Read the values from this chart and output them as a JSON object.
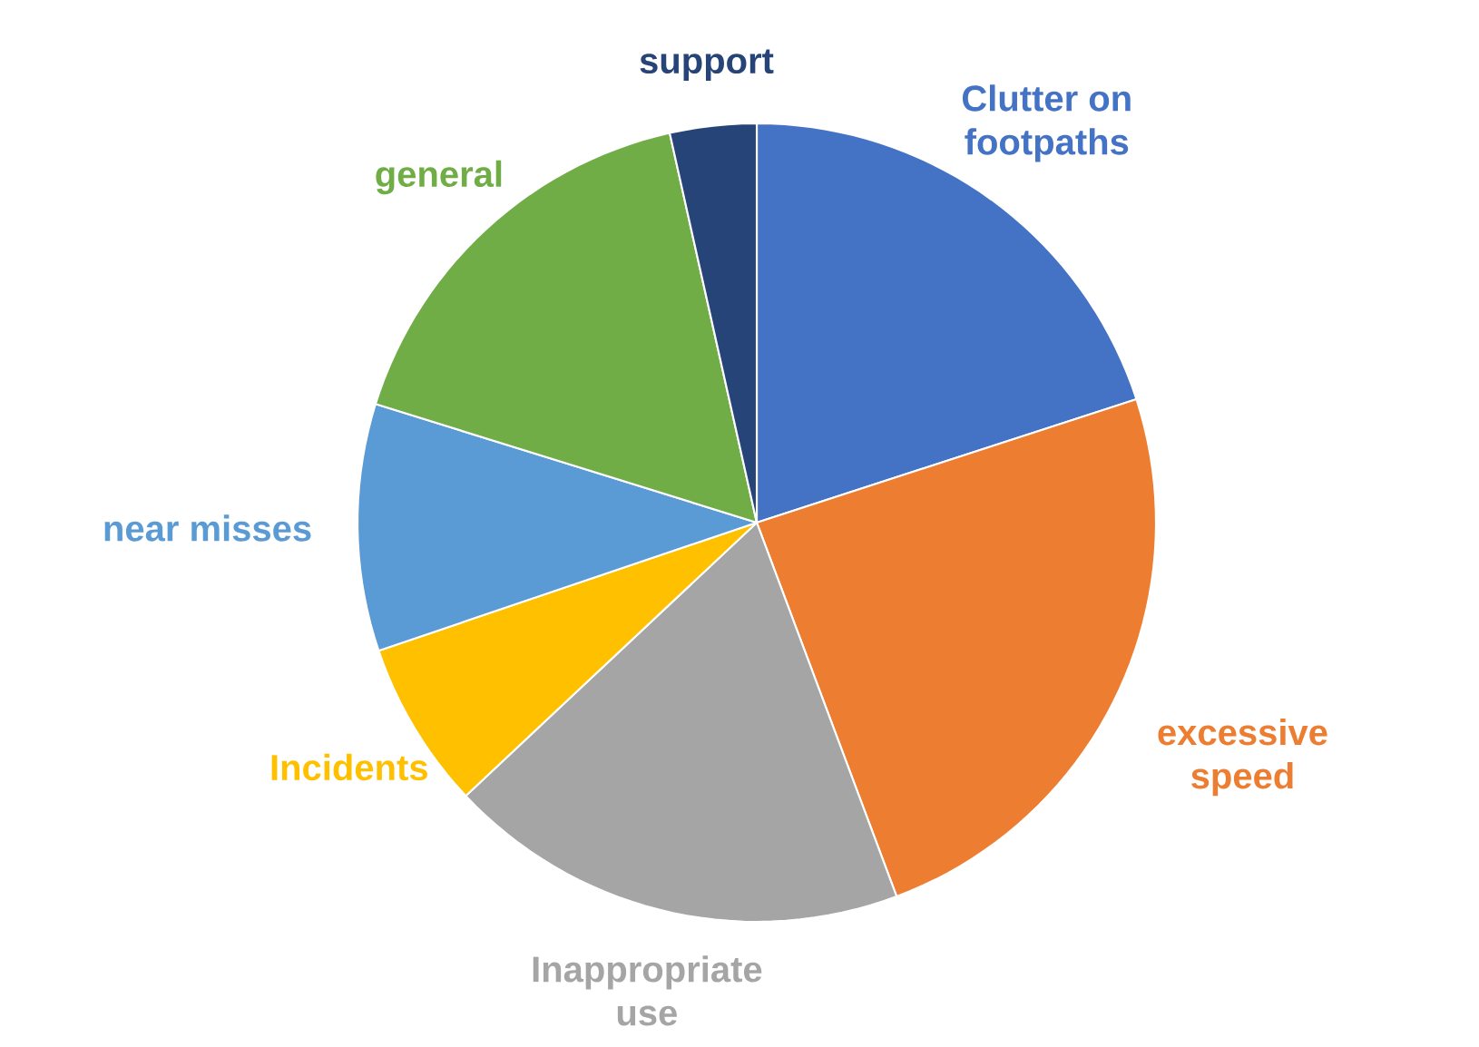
{
  "chart_data": {
    "type": "pie",
    "categories": [
      "Clutter on footpaths",
      "excessive speed",
      "Inappropriate use",
      "Incidents",
      "near misses",
      "general",
      "support"
    ],
    "values": [
      20,
      24.3,
      18.7,
      6.8,
      10,
      16.7,
      3.5
    ],
    "colors": [
      "#4472c4",
      "#ed7d31",
      "#a5a5a5",
      "#ffc000",
      "#5b9bd5",
      "#70ad47",
      "#264478"
    ]
  }
}
